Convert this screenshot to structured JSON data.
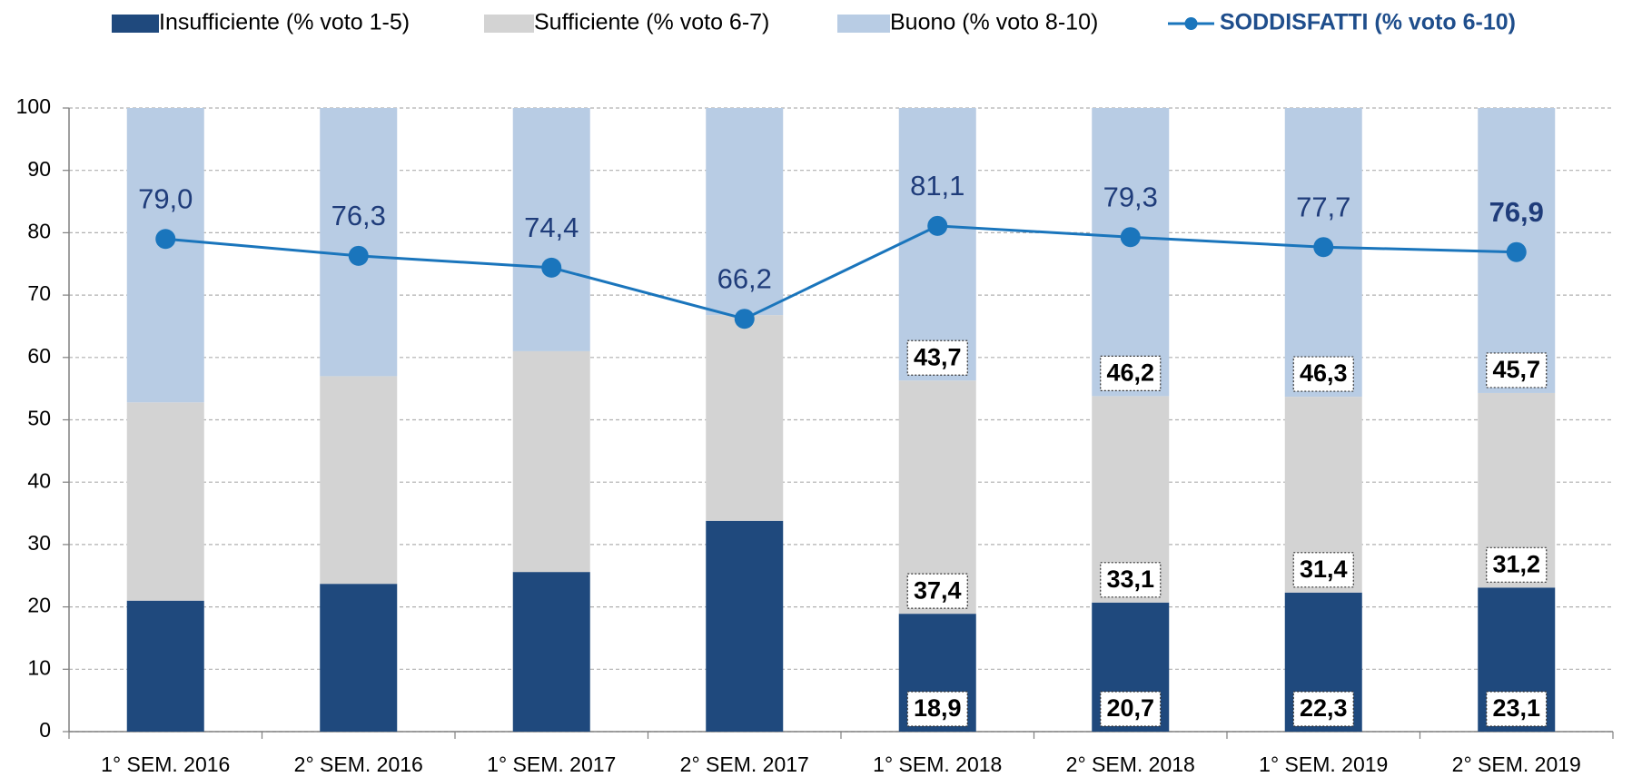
{
  "chart_data": {
    "type": "bar",
    "stacked": true,
    "categories": [
      "1° SEM. 2016",
      "2° SEM. 2016",
      "1° SEM. 2017",
      "2° SEM. 2017",
      "1° SEM. 2018",
      "2° SEM. 2018",
      "1° SEM. 2019",
      "2° SEM. 2019"
    ],
    "series": [
      {
        "name": "Insufficiente (% voto 1-5)",
        "color": "#1f497d",
        "values": [
          21.0,
          23.7,
          25.6,
          33.8,
          18.9,
          20.7,
          22.3,
          23.1
        ],
        "value_labels": [
          null,
          null,
          null,
          null,
          "18,9",
          "20,7",
          "22,3",
          "23,1"
        ]
      },
      {
        "name": "Sufficiente (% voto 6-7)",
        "color": "#d3d3d3",
        "values": [
          31.8,
          33.3,
          35.4,
          33.0,
          37.4,
          33.1,
          31.4,
          31.2
        ],
        "value_labels": [
          null,
          null,
          null,
          null,
          "37,4",
          "33,1",
          "31,4",
          "31,2"
        ]
      },
      {
        "name": "Buono (% voto 8-10)",
        "color": "#b8cce4",
        "values": [
          47.2,
          43.0,
          39.0,
          33.2,
          43.7,
          46.2,
          46.3,
          45.7
        ],
        "value_labels": [
          null,
          null,
          null,
          null,
          "43,7",
          "46,2",
          "46,3",
          "45,7"
        ]
      },
      {
        "name": "SODDISFATTI (% voto 6-10)",
        "color": "#1a75bc",
        "type": "line",
        "values": [
          79.0,
          76.3,
          74.4,
          66.2,
          81.1,
          79.3,
          77.7,
          76.9
        ],
        "value_labels": [
          "79,0",
          "76,3",
          "74,4",
          "66,2",
          "81,1",
          "79,3",
          "77,7",
          "76,9"
        ]
      }
    ],
    "ylim": [
      0,
      100
    ],
    "yticks": [
      0,
      10,
      20,
      30,
      40,
      50,
      60,
      70,
      80,
      90,
      100
    ],
    "grid": true,
    "legend": "top"
  }
}
